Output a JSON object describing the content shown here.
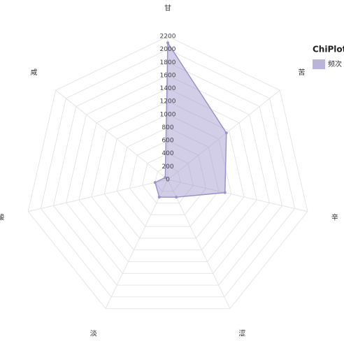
{
  "chart_data": {
    "type": "radar",
    "categories": [
      "甘",
      "苦",
      "辛",
      "涩",
      "淡",
      "酸",
      "咸"
    ],
    "series": [
      {
        "name": "频次",
        "color": "#9d93cc",
        "values": [
          2100,
          1150,
          900,
          300,
          300,
          200,
          50
        ]
      }
    ],
    "ylim": [
      0,
      2200
    ],
    "yticks": [
      0,
      200,
      400,
      600,
      800,
      1000,
      1200,
      1400,
      1600,
      1800,
      2000,
      2200
    ],
    "legend_title": "ChiPlot",
    "legend": "top-right",
    "grid": true
  }
}
